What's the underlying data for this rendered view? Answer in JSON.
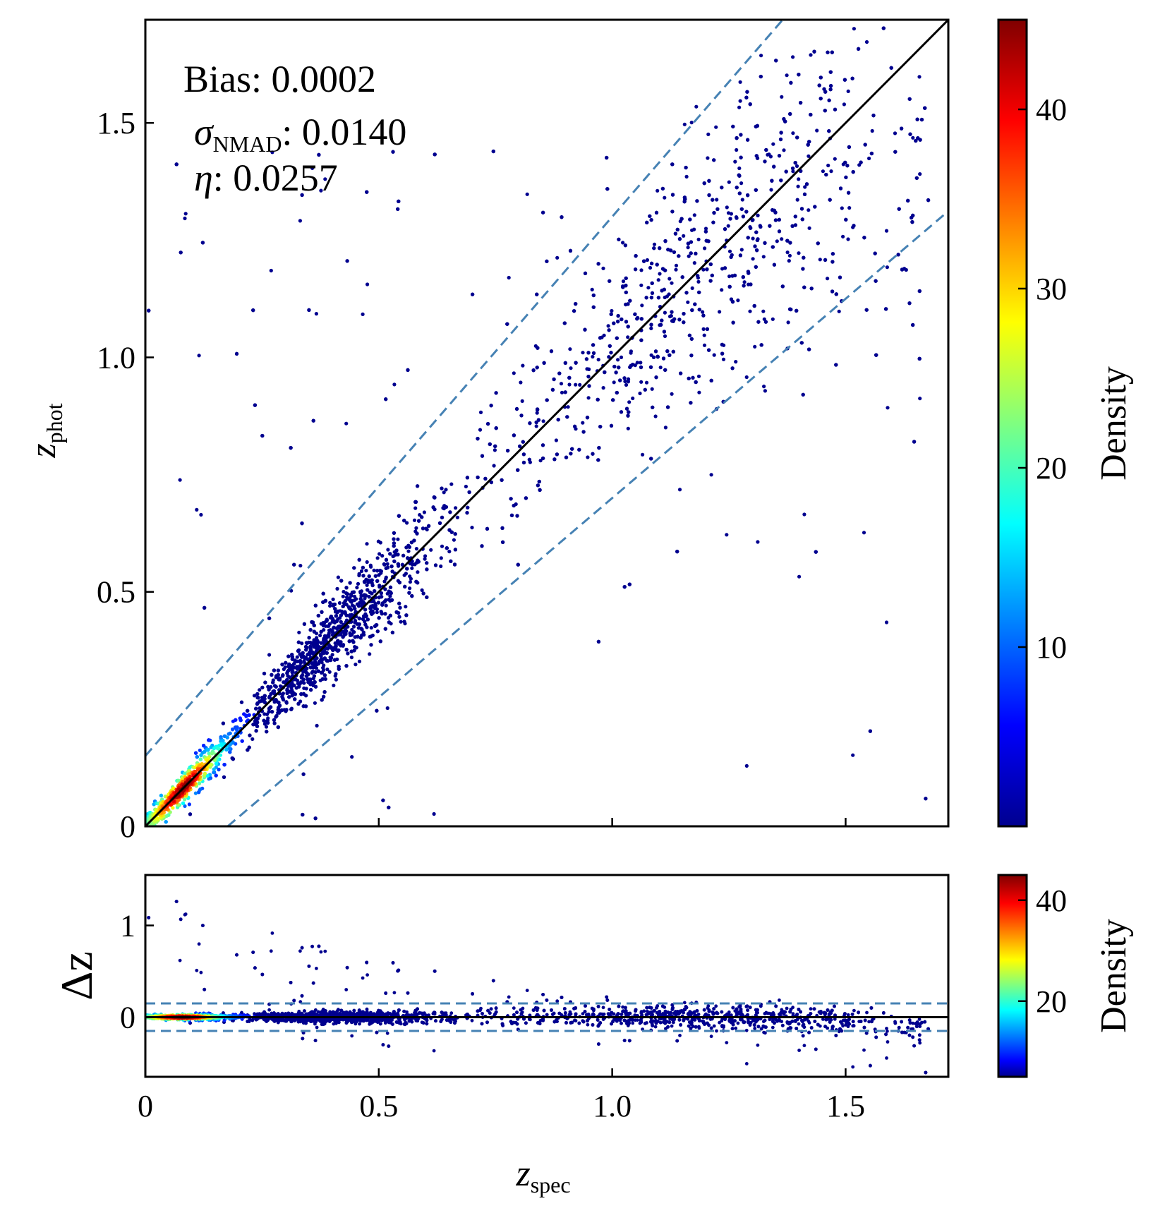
{
  "chart_data": [
    {
      "type": "scatter",
      "xlabel": "z",
      "xlabel_sub": "spec",
      "ylabel": "z",
      "ylabel_sub": "phot",
      "xlim": [
        0,
        1.72
      ],
      "ylim": [
        0,
        1.72
      ],
      "xticks": [
        0,
        0.5,
        1.0,
        1.5
      ],
      "xtick_labels": [
        "0",
        "0.5",
        "1.0",
        "1.5"
      ],
      "yticks": [
        0,
        0.5,
        1.0,
        1.5
      ],
      "ytick_labels": [
        "0",
        "0.5",
        "1.0",
        "1.5"
      ],
      "annotations": {
        "bias": "Bias: 0.0002",
        "sigma_symbol": "σ",
        "sigma_sub": "NMAD",
        "sigma_value": ": 0.0140",
        "eta_symbol": "η",
        "eta_value": ": 0.0257"
      },
      "reference_lines": [
        {
          "kind": "identity",
          "style": "solid",
          "color": "#000000"
        },
        {
          "kind": "outlier_bound_upper",
          "relation": "z_phot = z_spec + 0.15(1 + z_spec)",
          "style": "dashed",
          "color": "#4682b4"
        },
        {
          "kind": "outlier_bound_lower",
          "relation": "z_phot = z_spec - 0.15(1 + z_spec)",
          "style": "dashed",
          "color": "#4682b4"
        }
      ],
      "point_density": {
        "description": "dense cloud along the 1:1 line",
        "peak_at": [
          0.08,
          0.08
        ],
        "clusters": [
          {
            "x": 0.35,
            "y": 0.35,
            "sd": 0.05
          },
          {
            "x": 0.5,
            "y": 0.5,
            "sd": 0.05
          },
          {
            "x": 0.95,
            "y": 0.95,
            "sd": 0.12
          },
          {
            "x": 1.3,
            "y": 1.3,
            "sd": 0.12
          }
        ],
        "outliers": "scattered points above and below the dashed bounds",
        "xrange": [
          0,
          1.68
        ]
      },
      "colorbar": {
        "label": "Density",
        "colormap": "jet",
        "ticks": [
          10,
          20,
          30,
          40
        ],
        "range": [
          0,
          45
        ]
      },
      "grid": false
    },
    {
      "type": "scatter",
      "xlabel": "z",
      "xlabel_sub": "spec",
      "ylabel": "Δz",
      "xlim": [
        0,
        1.72
      ],
      "ylim": [
        -0.65,
        1.55
      ],
      "xticks": [
        0,
        0.5,
        1.0,
        1.5
      ],
      "xtick_labels": [
        "0",
        "0.5",
        "1.0",
        "1.5"
      ],
      "yticks": [
        0,
        1
      ],
      "ytick_labels": [
        "0",
        "1"
      ],
      "reference_lines": [
        {
          "kind": "zero",
          "y": 0,
          "style": "solid",
          "color": "#000000"
        },
        {
          "kind": "upper_bound",
          "y": 0.15,
          "style": "dashed",
          "color": "#4682b4"
        },
        {
          "kind": "lower_bound",
          "y": -0.15,
          "style": "dashed",
          "color": "#4682b4"
        }
      ],
      "residual_trend": [
        {
          "x": 0.0,
          "dz": 0.0
        },
        {
          "x": 0.8,
          "dz": 0.05
        },
        {
          "x": 1.2,
          "dz": 0.0
        },
        {
          "x": 1.6,
          "dz": -0.12
        }
      ],
      "colorbar": {
        "label": "Density",
        "colormap": "jet",
        "ticks": [
          20,
          40
        ],
        "range": [
          5,
          45
        ]
      },
      "grid": false
    }
  ],
  "colors": {
    "points_low": "#00008f",
    "dashed": "#4682b4",
    "identity": "#000000"
  }
}
